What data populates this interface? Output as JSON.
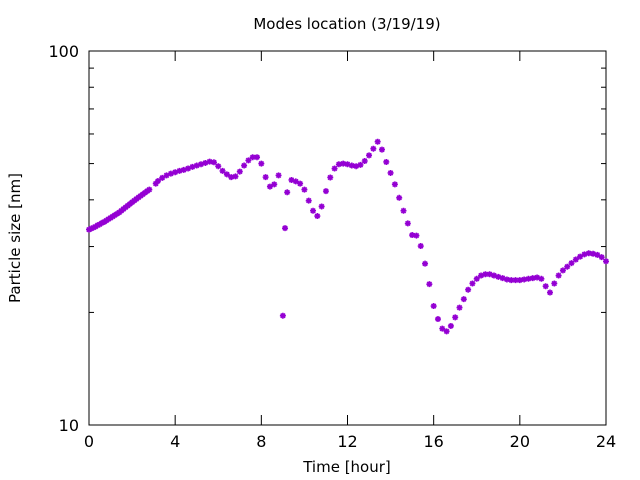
{
  "chart_data": {
    "type": "scatter",
    "title": "Modes location (3/19/19)",
    "xlabel": "Time [hour]",
    "ylabel": "Particle size [nm]",
    "xlim": [
      0,
      24
    ],
    "ylim": [
      10,
      100
    ],
    "yscale": "log",
    "x_ticks": [
      0,
      4,
      8,
      12,
      16,
      20,
      24
    ],
    "x_tick_labels": [
      "0",
      "4",
      "8",
      "12",
      "16",
      "20",
      "24"
    ],
    "y_tick_labels": [
      {
        "value": 10,
        "label": "10"
      },
      {
        "value": 100,
        "label": "100"
      }
    ],
    "grid": false,
    "legend": "none",
    "marker": "asterisk",
    "color": "#9400d3",
    "series": [
      {
        "x": [
          0.0,
          0.1,
          0.2,
          0.3,
          0.4,
          0.5,
          0.6,
          0.7,
          0.8,
          0.9,
          1.0,
          1.1,
          1.2,
          1.3,
          1.4,
          1.5,
          1.6,
          1.7,
          1.8,
          1.9,
          2.0,
          2.1,
          2.2,
          2.3,
          2.4,
          2.5,
          2.6,
          2.7,
          2.8,
          3.1,
          3.2,
          3.4,
          3.6,
          3.8,
          4.0,
          4.2,
          4.4,
          4.6,
          4.8,
          5.0,
          5.2,
          5.4,
          5.6,
          5.8,
          6.0,
          6.2,
          6.4,
          6.6,
          6.8,
          7.0,
          7.2,
          7.4,
          7.6,
          7.8,
          8.0,
          8.2,
          8.4,
          8.6,
          8.8,
          9.0,
          9.1,
          9.2,
          9.4,
          9.6,
          9.8,
          10.0,
          10.2,
          10.4,
          10.6,
          10.8,
          11.0,
          11.2,
          11.4,
          11.6,
          11.8,
          12.0,
          12.2,
          12.4,
          12.6,
          12.8,
          13.0,
          13.2,
          13.4,
          13.6,
          13.8,
          14.0,
          14.2,
          14.4,
          14.6,
          14.8,
          15.0,
          15.2,
          15.4,
          15.6,
          15.8,
          16.0,
          16.2,
          16.4,
          16.6,
          16.8,
          17.0,
          17.2,
          17.4,
          17.6,
          17.8,
          18.0,
          18.2,
          18.4,
          18.6,
          18.8,
          19.0,
          19.2,
          19.4,
          19.6,
          19.8,
          20.0,
          20.2,
          20.4,
          20.6,
          20.8,
          21.0,
          21.2,
          21.4,
          21.6,
          21.8,
          22.0,
          22.2,
          22.4,
          22.6,
          22.8,
          23.0,
          23.2,
          23.4,
          23.6,
          23.8,
          24.0
        ],
        "y": [
          33.3,
          33.5,
          33.7,
          33.9,
          34.2,
          34.4,
          34.7,
          34.9,
          35.2,
          35.5,
          35.8,
          36.1,
          36.4,
          36.7,
          37.0,
          37.4,
          37.8,
          38.2,
          38.6,
          39.0,
          39.4,
          39.8,
          40.2,
          40.6,
          41.0,
          41.4,
          41.8,
          42.2,
          42.6,
          44.2,
          44.9,
          45.8,
          46.5,
          47.0,
          47.4,
          47.8,
          48.1,
          48.5,
          49.0,
          49.4,
          49.8,
          50.2,
          50.6,
          50.4,
          49.2,
          47.8,
          46.8,
          46.0,
          46.2,
          47.6,
          49.4,
          51.0,
          52.0,
          52.0,
          50.0,
          46.0,
          43.4,
          44.0,
          46.5,
          19.6,
          33.6,
          41.9,
          45.2,
          44.8,
          44.2,
          42.6,
          39.8,
          37.4,
          36.2,
          38.4,
          42.2,
          45.9,
          48.5,
          49.8,
          50.0,
          49.8,
          49.4,
          49.2,
          49.6,
          50.8,
          52.6,
          54.8,
          57.2,
          54.5,
          50.5,
          47.2,
          44.0,
          40.5,
          37.4,
          34.6,
          32.2,
          32.1,
          30.1,
          27.0,
          23.8,
          20.8,
          19.2,
          18.1,
          17.8,
          18.4,
          19.4,
          20.6,
          21.7,
          23.0,
          23.9,
          24.6,
          25.1,
          25.3,
          25.3,
          25.1,
          24.9,
          24.7,
          24.5,
          24.4,
          24.4,
          24.4,
          24.5,
          24.6,
          24.7,
          24.8,
          24.6,
          23.5,
          22.6,
          23.9,
          25.1,
          25.9,
          26.5,
          27.1,
          27.7,
          28.2,
          28.6,
          28.8,
          28.7,
          28.5,
          28.1,
          27.4
        ]
      }
    ]
  }
}
